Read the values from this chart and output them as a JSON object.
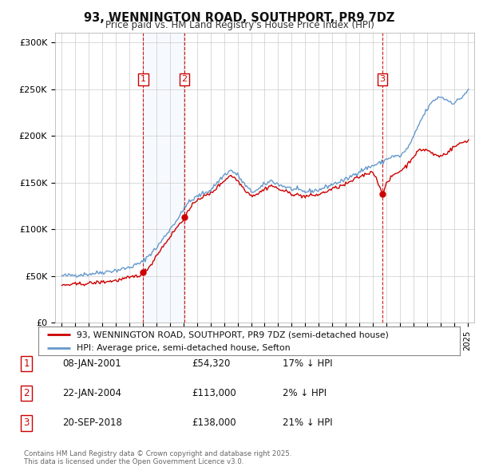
{
  "title": "93, WENNINGTON ROAD, SOUTHPORT, PR9 7DZ",
  "subtitle": "Price paid vs. HM Land Registry's House Price Index (HPI)",
  "background_color": "#ffffff",
  "plot_bg_color": "#ffffff",
  "grid_color": "#cccccc",
  "hpi_color": "#6699cc",
  "price_color": "#cc0000",
  "ylim": [
    0,
    310000
  ],
  "yticks": [
    0,
    50000,
    100000,
    150000,
    200000,
    250000,
    300000
  ],
  "ytick_labels": [
    "£0",
    "£50K",
    "£100K",
    "£150K",
    "£200K",
    "£250K",
    "£300K"
  ],
  "sale_prices": [
    54320,
    113000,
    138000
  ],
  "sale_labels": [
    "1",
    "2",
    "3"
  ],
  "legend_line1": "93, WENNINGTON ROAD, SOUTHPORT, PR9 7DZ (semi-detached house)",
  "legend_line2": "HPI: Average price, semi-detached house, Sefton",
  "table_rows": [
    [
      "1",
      "08-JAN-2001",
      "£54,320",
      "17% ↓ HPI"
    ],
    [
      "2",
      "22-JAN-2004",
      "£113,000",
      "2% ↓ HPI"
    ],
    [
      "3",
      "20-SEP-2018",
      "£138,000",
      "21% ↓ HPI"
    ]
  ],
  "footer": "Contains HM Land Registry data © Crown copyright and database right 2025.\nThis data is licensed under the Open Government Licence v3.0."
}
